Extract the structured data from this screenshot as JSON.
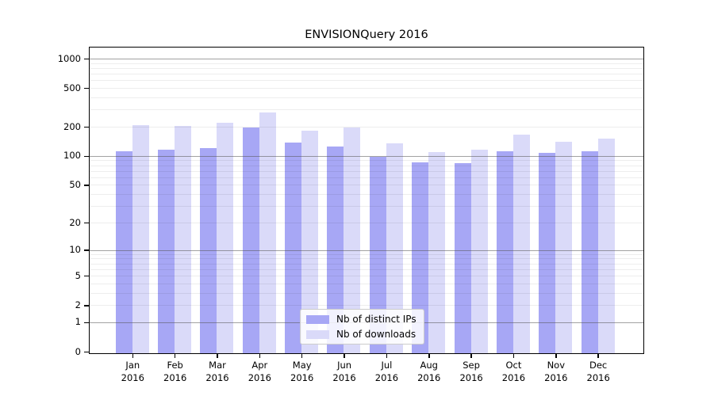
{
  "title": "ENVISIONQuery 2016",
  "chart_data": {
    "type": "bar",
    "title": "ENVISIONQuery 2016",
    "xlabel": "",
    "ylabel": "",
    "scale": "log1p",
    "grid": "both",
    "legend_position": "lower center",
    "year": "2016",
    "categories": [
      "Jan",
      "Feb",
      "Mar",
      "Apr",
      "May",
      "Jun",
      "Jul",
      "Aug",
      "Sep",
      "Oct",
      "Nov",
      "Dec"
    ],
    "series": [
      {
        "name": "Nb of distinct IPs",
        "color": "#a7a7f5",
        "values": [
          112,
          116,
          120,
          195,
          137,
          125,
          97,
          85,
          84,
          112,
          108,
          111
        ]
      },
      {
        "name": "Nb of downloads",
        "color": "#dadaf9",
        "values": [
          206,
          203,
          219,
          280,
          183,
          196,
          134,
          109,
          117,
          167,
          141,
          150
        ]
      }
    ],
    "y_ticks": [
      0,
      1,
      2,
      5,
      10,
      20,
      50,
      100,
      200,
      500,
      1000
    ],
    "y_major_gridlines": [
      1,
      10,
      100,
      1000
    ],
    "y_minor_gridline_subs": [
      2,
      3,
      4,
      5,
      6,
      7,
      8,
      9
    ],
    "ylim": [
      0,
      1300
    ]
  },
  "colors": {
    "background": "#ffffff",
    "spine": "#000000",
    "major_grid": "#555555",
    "minor_grid": "#e8e8e8",
    "text": "#000000"
  },
  "legend": {
    "items": [
      {
        "label": "Nb of distinct IPs"
      },
      {
        "label": "Nb of downloads"
      }
    ]
  }
}
